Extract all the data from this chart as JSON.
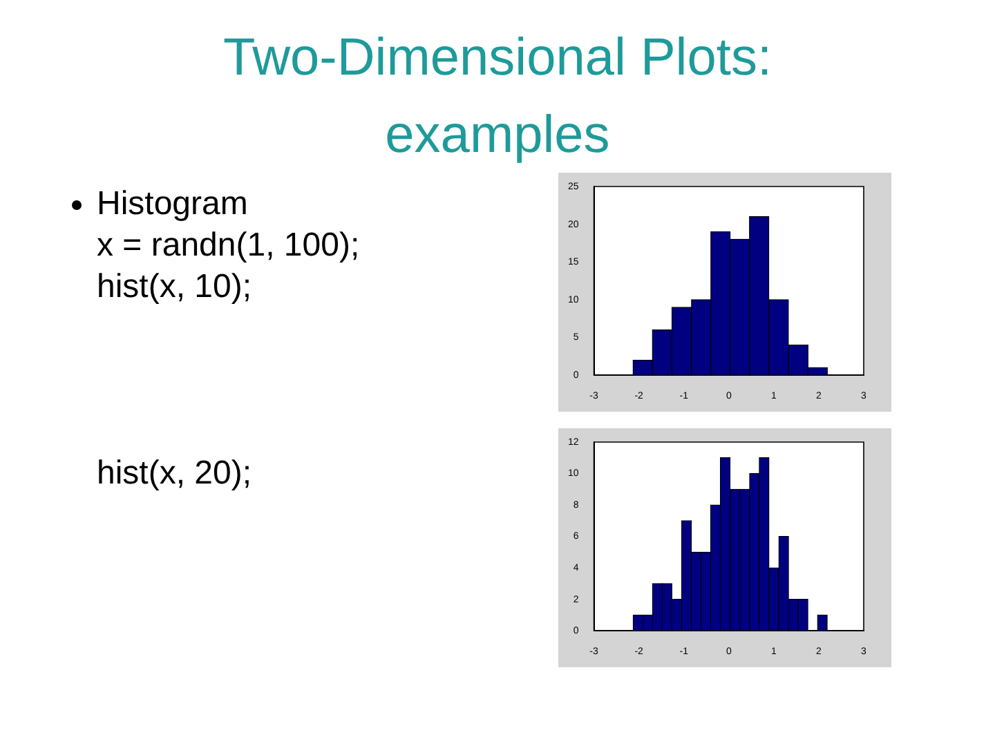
{
  "chart_data": [
    {
      "type": "histogram",
      "title": "Two-Dimensional Plots: examples",
      "annotations": [
        "Histogram",
        "x = randn(1, 100);",
        "hist(x, 10);"
      ],
      "bins": [
        -2.13,
        -1.7,
        -1.27,
        -0.83,
        -0.4,
        0.03,
        0.46,
        0.89,
        1.33,
        1.76,
        2.19
      ],
      "values": [
        2,
        6,
        9,
        10,
        19,
        18,
        21,
        10,
        4,
        1
      ],
      "color": "#000080",
      "xlim": [
        -3,
        3
      ],
      "xticks": [
        -3,
        -2,
        -1,
        0,
        1,
        2,
        3
      ],
      "ylim": [
        0,
        25
      ],
      "yticks": [
        0,
        5,
        10,
        15,
        20,
        25
      ],
      "grid": false
    },
    {
      "type": "histogram",
      "annotations": [
        "hist(x, 20);"
      ],
      "bins": [
        -2.13,
        -1.91,
        -1.7,
        -1.48,
        -1.27,
        -1.05,
        -0.83,
        -0.62,
        -0.4,
        -0.19,
        0.03,
        0.25,
        0.46,
        0.68,
        0.89,
        1.11,
        1.33,
        1.54,
        1.76,
        1.97,
        2.19
      ],
      "values": [
        1,
        1,
        3,
        3,
        2,
        7,
        5,
        5,
        8,
        11,
        9,
        9,
        10,
        11,
        4,
        6,
        2,
        2,
        0,
        1
      ],
      "color": "#000080",
      "xlim": [
        -3,
        3
      ],
      "xticks": [
        -3,
        -2,
        -1,
        0,
        1,
        2,
        3
      ],
      "ylim": [
        0,
        12
      ],
      "yticks": [
        0,
        2,
        4,
        6,
        8,
        10,
        12
      ],
      "grid": false
    }
  ]
}
